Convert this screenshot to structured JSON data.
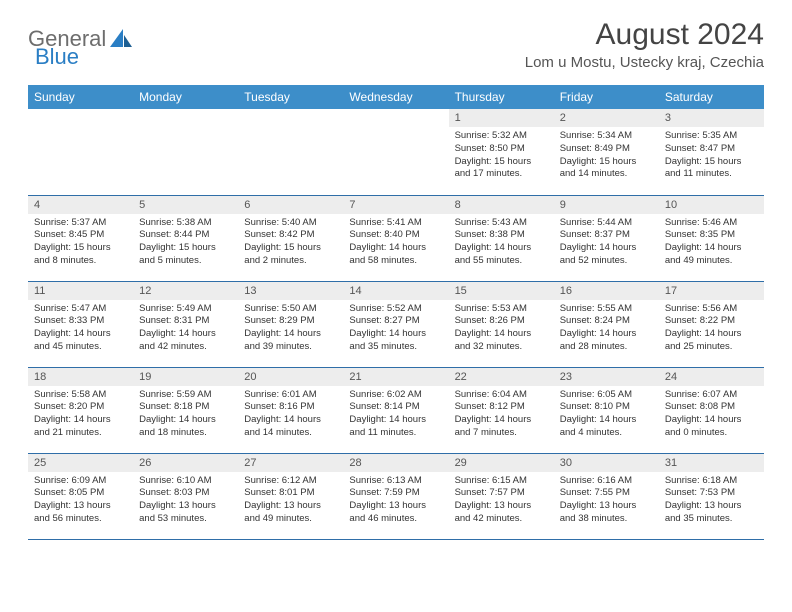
{
  "logo": {
    "text1": "General",
    "text2": "Blue"
  },
  "title": "August 2024",
  "location": "Lom u Mostu, Ustecky kraj, Czechia",
  "colors": {
    "header_bg": "#3d8ec9",
    "header_text": "#ffffff",
    "daynum_bg": "#ededed",
    "border": "#2f6ea8",
    "logo_gray": "#6d6d6d",
    "logo_blue": "#2a7ec4"
  },
  "day_headers": [
    "Sunday",
    "Monday",
    "Tuesday",
    "Wednesday",
    "Thursday",
    "Friday",
    "Saturday"
  ],
  "weeks": [
    [
      null,
      null,
      null,
      null,
      {
        "n": "1",
        "sr": "5:32 AM",
        "ss": "8:50 PM",
        "dl": "15 hours and 17 minutes."
      },
      {
        "n": "2",
        "sr": "5:34 AM",
        "ss": "8:49 PM",
        "dl": "15 hours and 14 minutes."
      },
      {
        "n": "3",
        "sr": "5:35 AM",
        "ss": "8:47 PM",
        "dl": "15 hours and 11 minutes."
      }
    ],
    [
      {
        "n": "4",
        "sr": "5:37 AM",
        "ss": "8:45 PM",
        "dl": "15 hours and 8 minutes."
      },
      {
        "n": "5",
        "sr": "5:38 AM",
        "ss": "8:44 PM",
        "dl": "15 hours and 5 minutes."
      },
      {
        "n": "6",
        "sr": "5:40 AM",
        "ss": "8:42 PM",
        "dl": "15 hours and 2 minutes."
      },
      {
        "n": "7",
        "sr": "5:41 AM",
        "ss": "8:40 PM",
        "dl": "14 hours and 58 minutes."
      },
      {
        "n": "8",
        "sr": "5:43 AM",
        "ss": "8:38 PM",
        "dl": "14 hours and 55 minutes."
      },
      {
        "n": "9",
        "sr": "5:44 AM",
        "ss": "8:37 PM",
        "dl": "14 hours and 52 minutes."
      },
      {
        "n": "10",
        "sr": "5:46 AM",
        "ss": "8:35 PM",
        "dl": "14 hours and 49 minutes."
      }
    ],
    [
      {
        "n": "11",
        "sr": "5:47 AM",
        "ss": "8:33 PM",
        "dl": "14 hours and 45 minutes."
      },
      {
        "n": "12",
        "sr": "5:49 AM",
        "ss": "8:31 PM",
        "dl": "14 hours and 42 minutes."
      },
      {
        "n": "13",
        "sr": "5:50 AM",
        "ss": "8:29 PM",
        "dl": "14 hours and 39 minutes."
      },
      {
        "n": "14",
        "sr": "5:52 AM",
        "ss": "8:27 PM",
        "dl": "14 hours and 35 minutes."
      },
      {
        "n": "15",
        "sr": "5:53 AM",
        "ss": "8:26 PM",
        "dl": "14 hours and 32 minutes."
      },
      {
        "n": "16",
        "sr": "5:55 AM",
        "ss": "8:24 PM",
        "dl": "14 hours and 28 minutes."
      },
      {
        "n": "17",
        "sr": "5:56 AM",
        "ss": "8:22 PM",
        "dl": "14 hours and 25 minutes."
      }
    ],
    [
      {
        "n": "18",
        "sr": "5:58 AM",
        "ss": "8:20 PM",
        "dl": "14 hours and 21 minutes."
      },
      {
        "n": "19",
        "sr": "5:59 AM",
        "ss": "8:18 PM",
        "dl": "14 hours and 18 minutes."
      },
      {
        "n": "20",
        "sr": "6:01 AM",
        "ss": "8:16 PM",
        "dl": "14 hours and 14 minutes."
      },
      {
        "n": "21",
        "sr": "6:02 AM",
        "ss": "8:14 PM",
        "dl": "14 hours and 11 minutes."
      },
      {
        "n": "22",
        "sr": "6:04 AM",
        "ss": "8:12 PM",
        "dl": "14 hours and 7 minutes."
      },
      {
        "n": "23",
        "sr": "6:05 AM",
        "ss": "8:10 PM",
        "dl": "14 hours and 4 minutes."
      },
      {
        "n": "24",
        "sr": "6:07 AM",
        "ss": "8:08 PM",
        "dl": "14 hours and 0 minutes."
      }
    ],
    [
      {
        "n": "25",
        "sr": "6:09 AM",
        "ss": "8:05 PM",
        "dl": "13 hours and 56 minutes."
      },
      {
        "n": "26",
        "sr": "6:10 AM",
        "ss": "8:03 PM",
        "dl": "13 hours and 53 minutes."
      },
      {
        "n": "27",
        "sr": "6:12 AM",
        "ss": "8:01 PM",
        "dl": "13 hours and 49 minutes."
      },
      {
        "n": "28",
        "sr": "6:13 AM",
        "ss": "7:59 PM",
        "dl": "13 hours and 46 minutes."
      },
      {
        "n": "29",
        "sr": "6:15 AM",
        "ss": "7:57 PM",
        "dl": "13 hours and 42 minutes."
      },
      {
        "n": "30",
        "sr": "6:16 AM",
        "ss": "7:55 PM",
        "dl": "13 hours and 38 minutes."
      },
      {
        "n": "31",
        "sr": "6:18 AM",
        "ss": "7:53 PM",
        "dl": "13 hours and 35 minutes."
      }
    ]
  ],
  "labels": {
    "sunrise": "Sunrise:",
    "sunset": "Sunset:",
    "daylight": "Daylight:"
  }
}
